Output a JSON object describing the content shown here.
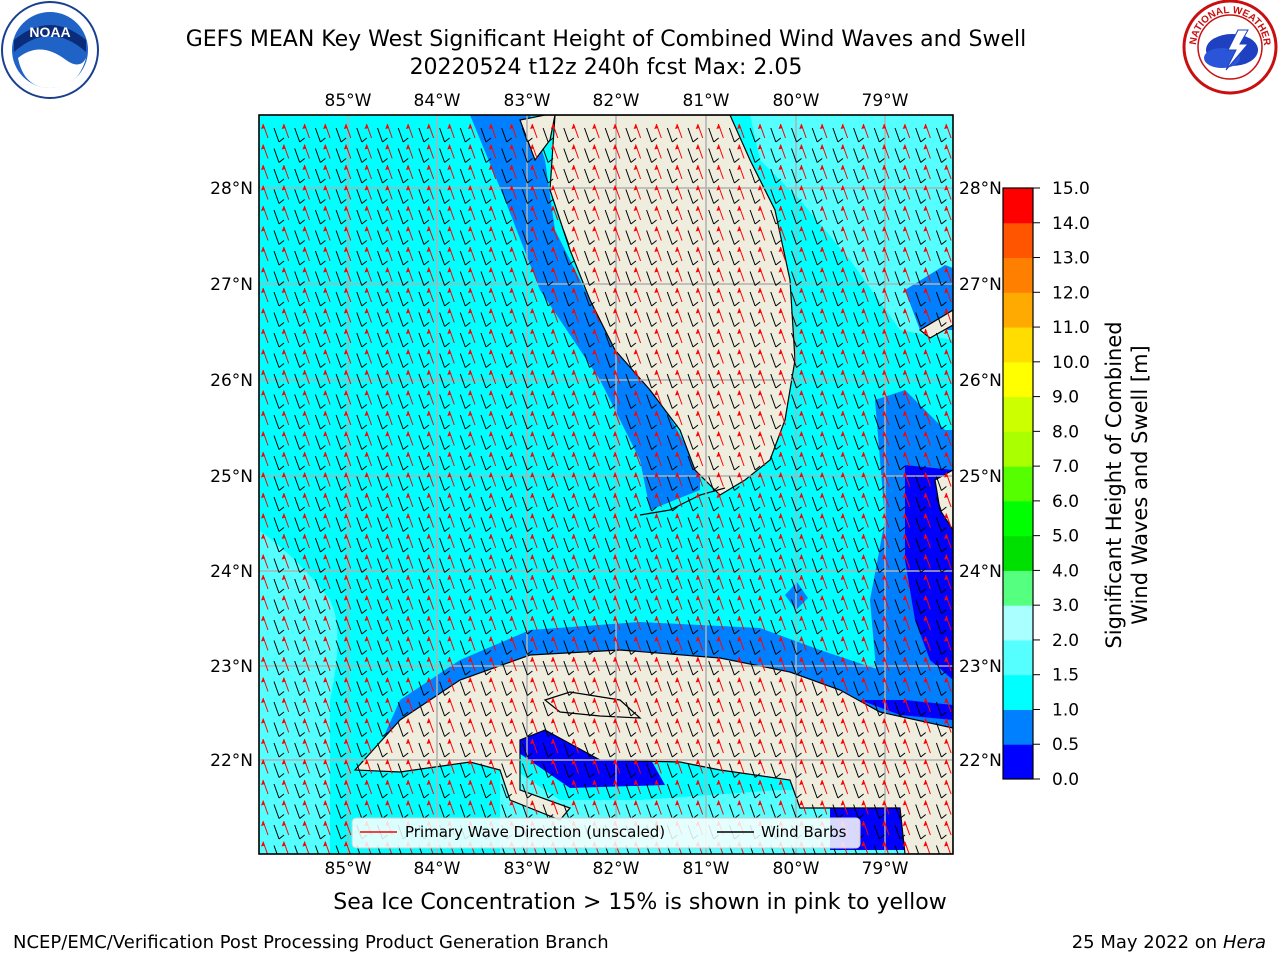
{
  "header": {
    "title_line1": "GEFS MEAN Key West Significant Height of Combined Wind Waves and Swell",
    "title_line2": "20220524 t12z 240h fcst   Max: 2.05"
  },
  "logos": {
    "left": "NOAA",
    "right": "NATIONAL WEATHER SERVICE"
  },
  "map": {
    "lon_labels": [
      "85°W",
      "84°W",
      "83°W",
      "82°W",
      "81°W",
      "80°W",
      "79°W"
    ],
    "lat_labels": [
      "28°N",
      "27°N",
      "26°N",
      "25°N",
      "24°N",
      "23°N",
      "22°N"
    ],
    "legend": {
      "wave_label": "Primary Wave Direction (unscaled)",
      "wind_label": "Wind Barbs"
    },
    "colors": {
      "ocean_main": "#00ffff",
      "ocean_light": "#55ffff",
      "shallow": "#0080ff",
      "very_shallow": "#0000ff",
      "land": "#efedde",
      "wave_arrow": "#ff0000",
      "wind_barb": "#000000"
    }
  },
  "colorbar": {
    "ticks": [
      "15.0",
      "14.0",
      "13.0",
      "12.0",
      "11.0",
      "10.0",
      "9.0",
      "8.0",
      "7.0",
      "6.0",
      "5.0",
      "4.0",
      "3.0",
      "2.0",
      "1.5",
      "1.0",
      "0.5",
      "0.0"
    ],
    "colors": [
      "#0000ff",
      "#0080ff",
      "#00ffff",
      "#55ffff",
      "#aaffff",
      "#55ff80",
      "#00e000",
      "#00ff00",
      "#55ff00",
      "#aaff00",
      "#ccff00",
      "#ffff00",
      "#ffdd00",
      "#ffaa00",
      "#ff8000",
      "#ff5500",
      "#ff0000"
    ],
    "label": "Significant Height of Combined\nWind Waves and Swell [m]"
  },
  "note": "Sea Ice Concentration > 15% is shown in pink to yellow",
  "footer": {
    "left": "NCEP/EMC/Verification Post Processing Product Generation Branch",
    "right_date": "25 May 2022 on",
    "right_host": "Hera"
  }
}
